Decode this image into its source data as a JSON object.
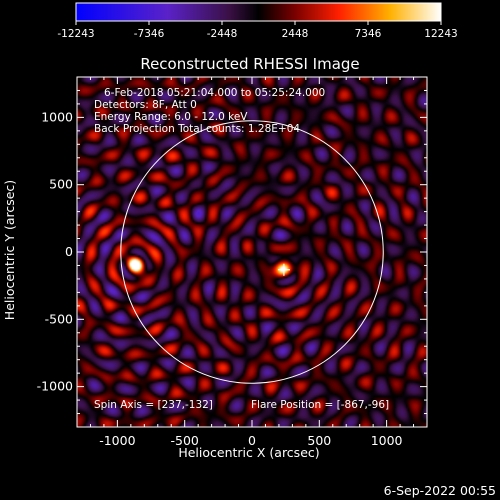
{
  "chart_data": {
    "type": "heatmap",
    "title": "Reconstructed RHESSI Image",
    "xlabel": "Heliocentric X (arcsec)",
    "ylabel": "Heliocentric Y (arcsec)",
    "xlim": [
      -1300,
      1300
    ],
    "ylim": [
      -1300,
      1300
    ],
    "x_ticks": [
      "-1000",
      "-500",
      "0",
      "500",
      "1000"
    ],
    "x_tick_values": [
      -1000,
      -500,
      0,
      500,
      1000
    ],
    "y_ticks": [
      "1000",
      "500",
      "0",
      "-500",
      "-1000"
    ],
    "y_tick_values": [
      1000,
      500,
      0,
      -500,
      -1000
    ],
    "colorbar": {
      "range": [
        -12243,
        12243
      ],
      "tick_labels": [
        "-12243",
        "-7346",
        "-2448",
        "2448",
        "7346",
        "12243"
      ],
      "colormap": "rhessi blue-purple-red-yellow-white"
    },
    "info_lines": [
      "6-Feb-2018 05:21:04.000 to 05:25:24.000",
      "Detectors: 8F, Att 0",
      "Energy Range: 6.0 - 12.0 keV",
      "Back Projection    Total counts: 1.28E+04"
    ],
    "spin_axis_text": "Spin Axis = [237,-132]",
    "flare_position_text": "Flare Position = [-867,-96]",
    "solar_limb_radius": 975,
    "solar_limb_center": [
      0,
      0
    ],
    "spin_axis": [
      237,
      -132
    ],
    "flare_position": [
      -867,
      -96
    ],
    "bright_sources": [
      {
        "x": -867,
        "y": -96,
        "intensity": 12243
      },
      {
        "x": 237,
        "y": -132,
        "intensity": 8500
      }
    ]
  },
  "footer": {
    "date": "6-Sep-2022 00:55"
  }
}
